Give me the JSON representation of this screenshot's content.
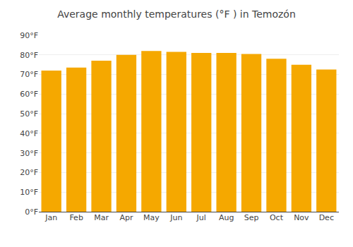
{
  "chart_data": {
    "type": "bar",
    "title": "Average monthly temperatures (°F ) in Temozón",
    "categories": [
      "Jan",
      "Feb",
      "Mar",
      "Apr",
      "May",
      "Jun",
      "Jul",
      "Aug",
      "Sep",
      "Oct",
      "Nov",
      "Dec"
    ],
    "values": [
      72,
      73.5,
      77,
      80,
      82,
      81.5,
      81,
      81,
      80.5,
      78,
      75,
      72.5
    ],
    "color": "#F5A800",
    "ylim": [
      0,
      90
    ],
    "yticks": [
      {
        "value": 0,
        "label": "0°F"
      },
      {
        "value": 10,
        "label": "10°F"
      },
      {
        "value": 20,
        "label": "20°F"
      },
      {
        "value": 30,
        "label": "30°F"
      },
      {
        "value": 40,
        "label": "40°F"
      },
      {
        "value": 50,
        "label": "50°F"
      },
      {
        "value": 60,
        "label": "60°F"
      },
      {
        "value": 70,
        "label": "70°F"
      },
      {
        "value": 80,
        "label": "80°F"
      },
      {
        "value": 90,
        "label": "90°F"
      }
    ],
    "grid": true
  }
}
